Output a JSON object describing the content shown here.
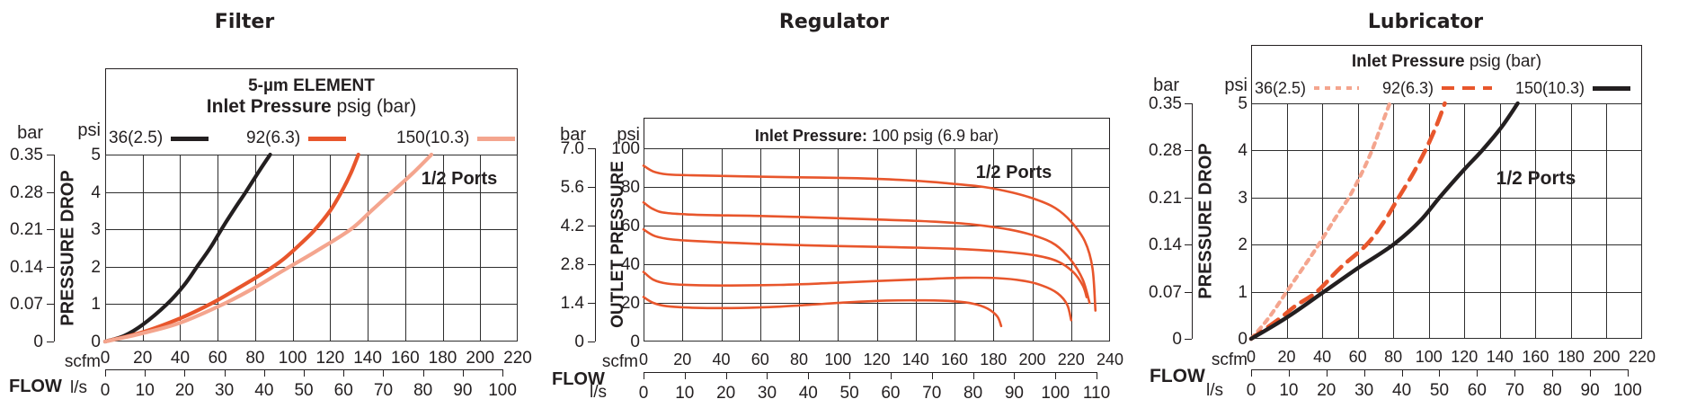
{
  "page": {
    "background": "#ffffff"
  },
  "colors": {
    "black": "#231f20",
    "orange": "#e8562c",
    "salmon": "#f4a58e",
    "grid": "#2e2e2e"
  },
  "chart_data": [
    {
      "type": "line",
      "title": "Filter",
      "element_label": "5-µm ELEMENT",
      "legend_title": {
        "bold": "Inlet Pressure",
        "rest": " psig (bar)"
      },
      "annotation": "1/2 Ports",
      "legend": [
        {
          "label": "36(2.5)",
          "style": "solid",
          "color": "#231f20"
        },
        {
          "label": "92(6.3)",
          "style": "solid",
          "color": "#e8562c"
        },
        {
          "label": "150(10.3)",
          "style": "solid",
          "color": "#f4a58e"
        }
      ],
      "x_axis": {
        "label": "FLOW",
        "primary_unit": "scfm",
        "secondary_unit": "l/s",
        "scfm_ticks": [
          0,
          20,
          40,
          60,
          80,
          100,
          120,
          140,
          160,
          180,
          200,
          220
        ],
        "ls_ticks": [
          0,
          10,
          20,
          30,
          40,
          50,
          60,
          70,
          80,
          90,
          100
        ],
        "scfm_range": [
          0,
          220
        ],
        "scfm_per_ls": 2.119,
        "grid": true
      },
      "y_axis": {
        "label": "PRESSURE DROP",
        "primary_unit": "psi",
        "secondary_unit": "bar",
        "psi_ticks": [
          5,
          4,
          3,
          2,
          1,
          0
        ],
        "bar_ticks": [
          "0.35",
          "0.28",
          "0.21",
          "0.14",
          "0.07",
          "0"
        ],
        "psi_range": [
          0,
          5
        ]
      },
      "series": [
        {
          "name": "36(2.5)",
          "style": "solid",
          "color": "#231f20",
          "points_scfm_psi": [
            [
              0,
              0
            ],
            [
              10,
              0.15
            ],
            [
              20,
              0.45
            ],
            [
              33,
              1
            ],
            [
              42,
              1.5
            ],
            [
              49,
              2
            ],
            [
              56,
              2.5
            ],
            [
              62,
              3
            ],
            [
              69,
              3.55
            ],
            [
              75,
              4
            ],
            [
              82,
              4.55
            ],
            [
              88,
              5
            ]
          ]
        },
        {
          "name": "92(6.3)",
          "style": "solid",
          "color": "#e8562c",
          "points_scfm_psi": [
            [
              0,
              0
            ],
            [
              20,
              0.25
            ],
            [
              40,
              0.62
            ],
            [
              56,
              1
            ],
            [
              70,
              1.4
            ],
            [
              85,
              1.85
            ],
            [
              95,
              2.2
            ],
            [
              105,
              2.65
            ],
            [
              112,
              3
            ],
            [
              120,
              3.5
            ],
            [
              126,
              4
            ],
            [
              131,
              4.5
            ],
            [
              135,
              5
            ]
          ]
        },
        {
          "name": "150(10.3)",
          "style": "solid",
          "color": "#f4a58e",
          "points_scfm_psi": [
            [
              0,
              0
            ],
            [
              20,
              0.22
            ],
            [
              40,
              0.5
            ],
            [
              63,
              1
            ],
            [
              80,
              1.45
            ],
            [
              95,
              1.9
            ],
            [
              112,
              2.4
            ],
            [
              131,
              3
            ],
            [
              142,
              3.5
            ],
            [
              153,
              4
            ],
            [
              164,
              4.5
            ],
            [
              174,
              5
            ]
          ]
        }
      ]
    },
    {
      "type": "line",
      "title": "Regulator",
      "inlet_note": {
        "bold": "Inlet Pressure:",
        "rest": " 100 psig (6.9 bar)"
      },
      "annotation": "1/2 Ports",
      "x_axis": {
        "label": "FLOW",
        "primary_unit": "scfm",
        "secondary_unit": "l/s",
        "scfm_ticks": [
          0,
          20,
          40,
          60,
          80,
          100,
          120,
          140,
          160,
          180,
          200,
          220,
          240
        ],
        "ls_ticks": [
          0,
          10,
          20,
          30,
          40,
          50,
          60,
          70,
          80,
          90,
          100,
          110
        ],
        "scfm_range": [
          0,
          240
        ],
        "scfm_per_ls": 2.119,
        "grid": true
      },
      "y_axis": {
        "label": "OUTLET PRESSURE",
        "primary_unit": "psi",
        "secondary_unit": "bar",
        "psi_ticks": [
          100,
          80,
          60,
          40,
          20,
          0
        ],
        "bar_ticks": [
          "7.0",
          "5.6",
          "4.2",
          "2.8",
          "1.4",
          "0"
        ],
        "psi_range": [
          0,
          100
        ]
      },
      "series": [
        {
          "style": "solid",
          "color": "#e8562c",
          "points_scfm_psi": [
            [
              0,
              91
            ],
            [
              5,
              88
            ],
            [
              12,
              86.5
            ],
            [
              25,
              86
            ],
            [
              50,
              85.5
            ],
            [
              80,
              85
            ],
            [
              110,
              84.5
            ],
            [
              135,
              83.5
            ],
            [
              155,
              82
            ],
            [
              175,
              80
            ],
            [
              190,
              77
            ],
            [
              202,
              73.5
            ],
            [
              212,
              69
            ],
            [
              220,
              62
            ],
            [
              227,
              52
            ],
            [
              231,
              38
            ],
            [
              232.5,
              16
            ]
          ]
        },
        {
          "style": "solid",
          "color": "#e8562c",
          "points_scfm_psi": [
            [
              0,
              72
            ],
            [
              5,
              68.5
            ],
            [
              12,
              66.5
            ],
            [
              30,
              65.5
            ],
            [
              60,
              65
            ],
            [
              95,
              64
            ],
            [
              125,
              63
            ],
            [
              150,
              62
            ],
            [
              170,
              60.5
            ],
            [
              188,
              58
            ],
            [
              202,
              54.5
            ],
            [
              212,
              50
            ],
            [
              220,
              42
            ],
            [
              226,
              32
            ],
            [
              229.5,
              20
            ]
          ]
        },
        {
          "style": "solid",
          "color": "#e8562c",
          "points_scfm_psi": [
            [
              0,
              58
            ],
            [
              6,
              54.5
            ],
            [
              15,
              52.8
            ],
            [
              30,
              51.8
            ],
            [
              60,
              50.5
            ],
            [
              95,
              49.5
            ],
            [
              130,
              48.8
            ],
            [
              160,
              48
            ],
            [
              185,
              46.5
            ],
            [
              202,
              44.5
            ],
            [
              213,
              41.5
            ],
            [
              221,
              36
            ],
            [
              226,
              29
            ],
            [
              228,
              23
            ]
          ]
        },
        {
          "style": "solid",
          "color": "#e8562c",
          "points_scfm_psi": [
            [
              0,
              36
            ],
            [
              5,
              32
            ],
            [
              12,
              30
            ],
            [
              25,
              29.2
            ],
            [
              45,
              29
            ],
            [
              70,
              29.3
            ],
            [
              95,
              30.2
            ],
            [
              120,
              31.3
            ],
            [
              145,
              32.3
            ],
            [
              165,
              33
            ],
            [
              182,
              32.8
            ],
            [
              195,
              31.5
            ],
            [
              205,
              29
            ],
            [
              213,
              25
            ],
            [
              218,
              19
            ],
            [
              220,
              11
            ]
          ]
        },
        {
          "style": "solid",
          "color": "#e8562c",
          "points_scfm_psi": [
            [
              0,
              23
            ],
            [
              5,
              20
            ],
            [
              12,
              18.3
            ],
            [
              25,
              17.5
            ],
            [
              45,
              17.3
            ],
            [
              65,
              17.8
            ],
            [
              85,
              19
            ],
            [
              105,
              20.3
            ],
            [
              125,
              21.2
            ],
            [
              145,
              21.3
            ],
            [
              160,
              20.8
            ],
            [
              170,
              19.5
            ],
            [
              177,
              17
            ],
            [
              182,
              13
            ],
            [
              184,
              8
            ]
          ]
        }
      ]
    },
    {
      "type": "line",
      "title": "Lubricator",
      "legend_title": {
        "bold": "Inlet Pressure",
        "rest": " psig (bar)"
      },
      "annotation": "1/2 Ports",
      "legend": [
        {
          "label": "36(2.5)",
          "style": "dotted",
          "color": "#f4a58e"
        },
        {
          "label": "92(6.3)",
          "style": "dashed",
          "color": "#e8562c"
        },
        {
          "label": "150(10.3)",
          "style": "solid",
          "color": "#231f20"
        }
      ],
      "x_axis": {
        "label": "FLOW",
        "primary_unit": "scfm",
        "secondary_unit": "l/s",
        "scfm_ticks": [
          0,
          20,
          40,
          60,
          80,
          100,
          120,
          140,
          160,
          180,
          200,
          220
        ],
        "ls_ticks": [
          0,
          10,
          20,
          30,
          40,
          50,
          60,
          70,
          80,
          90,
          100
        ],
        "scfm_range": [
          0,
          220
        ],
        "scfm_per_ls": 2.119,
        "grid": true
      },
      "y_axis": {
        "label": "PRESSURE DROP",
        "primary_unit": "psi",
        "secondary_unit": "bar",
        "psi_ticks": [
          5,
          4,
          3,
          2,
          1,
          0
        ],
        "bar_ticks": [
          "0.35",
          "0.28",
          "0.21",
          "0.14",
          "0.07",
          "0"
        ],
        "psi_range": [
          0,
          5
        ]
      },
      "series": [
        {
          "name": "36(2.5)",
          "style": "dotted",
          "color": "#f4a58e",
          "points_scfm_psi": [
            [
              0,
              0
            ],
            [
              10,
              0.45
            ],
            [
              20,
              1
            ],
            [
              30,
              1.55
            ],
            [
              38,
              2
            ],
            [
              48,
              2.6
            ],
            [
              55,
              3
            ],
            [
              62,
              3.5
            ],
            [
              68,
              4
            ],
            [
              73,
              4.5
            ],
            [
              78,
              5
            ]
          ]
        },
        {
          "name": "92(6.3)",
          "style": "dashed",
          "color": "#e8562c",
          "points_scfm_psi": [
            [
              0,
              0
            ],
            [
              15,
              0.4
            ],
            [
              25,
              0.7
            ],
            [
              37,
              1
            ],
            [
              50,
              1.5
            ],
            [
              65,
              2
            ],
            [
              75,
              2.5
            ],
            [
              83,
              3
            ],
            [
              91,
              3.5
            ],
            [
              98,
              4
            ],
            [
              104,
              4.5
            ],
            [
              109,
              5
            ]
          ]
        },
        {
          "name": "150(10.3)",
          "style": "solid",
          "color": "#231f20",
          "points_scfm_psi": [
            [
              0,
              0
            ],
            [
              20,
              0.45
            ],
            [
              41,
              1
            ],
            [
              60,
              1.5
            ],
            [
              80,
              2
            ],
            [
              95,
              2.5
            ],
            [
              106,
              3
            ],
            [
              120,
              3.6
            ],
            [
              130,
              4
            ],
            [
              141,
              4.5
            ],
            [
              150,
              5
            ]
          ]
        }
      ]
    }
  ]
}
